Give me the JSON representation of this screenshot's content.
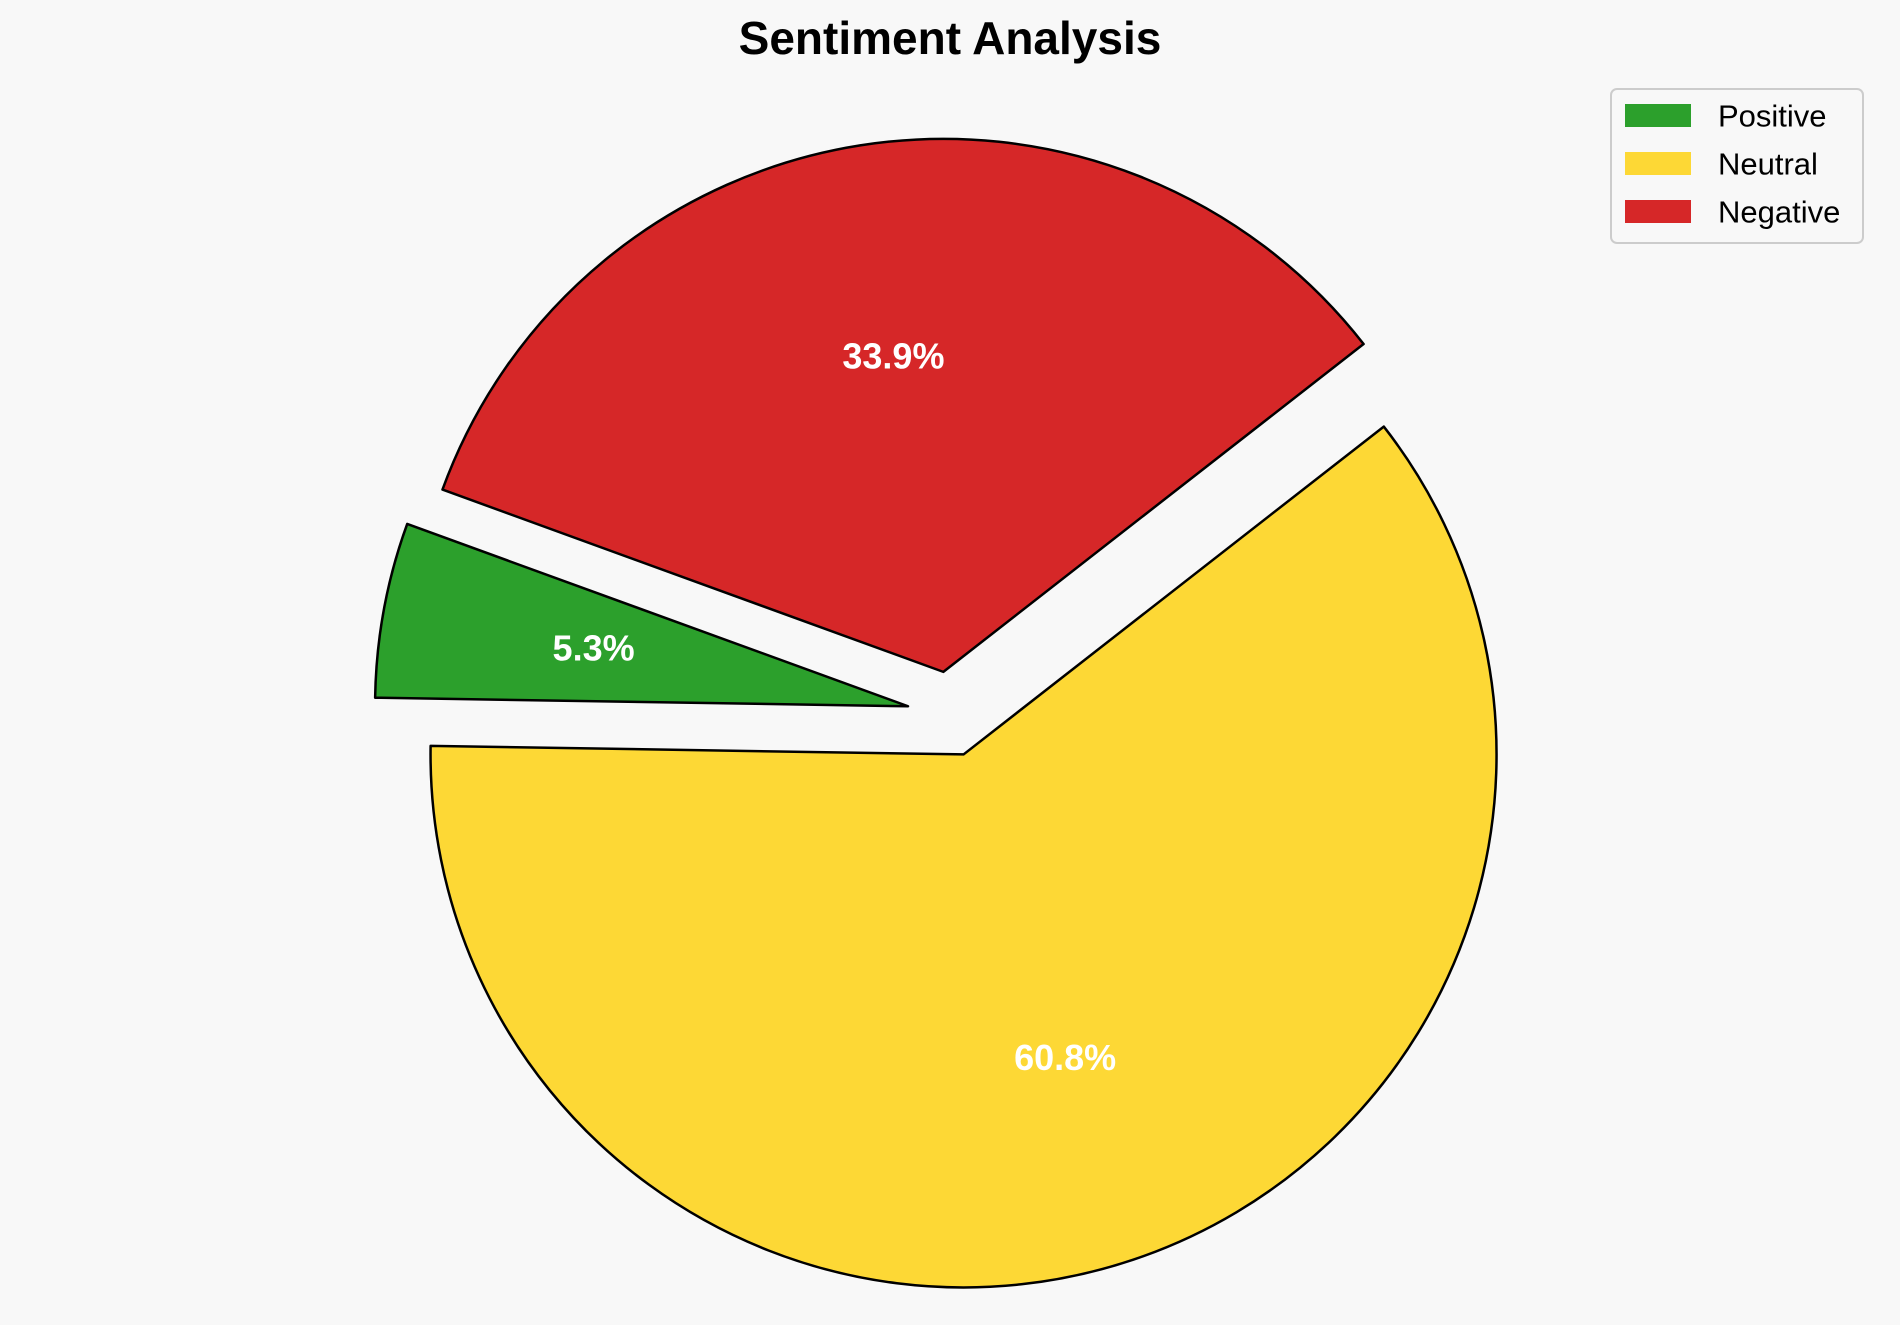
{
  "chart_data": {
    "type": "pie",
    "title": "Sentiment Analysis",
    "categories": [
      "Positive",
      "Neutral",
      "Negative"
    ],
    "values": [
      5.3,
      60.8,
      33.9
    ],
    "data_labels": [
      "5.3%",
      "60.8%",
      "33.9%"
    ],
    "colors": [
      "#2ca02c",
      "#fdd835",
      "#d62728"
    ],
    "exploded": true,
    "legend": {
      "placement": "top-right",
      "entries": [
        "Positive",
        "Neutral",
        "Negative"
      ]
    },
    "label_color": "#ffffff",
    "edge_color": "#000000"
  }
}
